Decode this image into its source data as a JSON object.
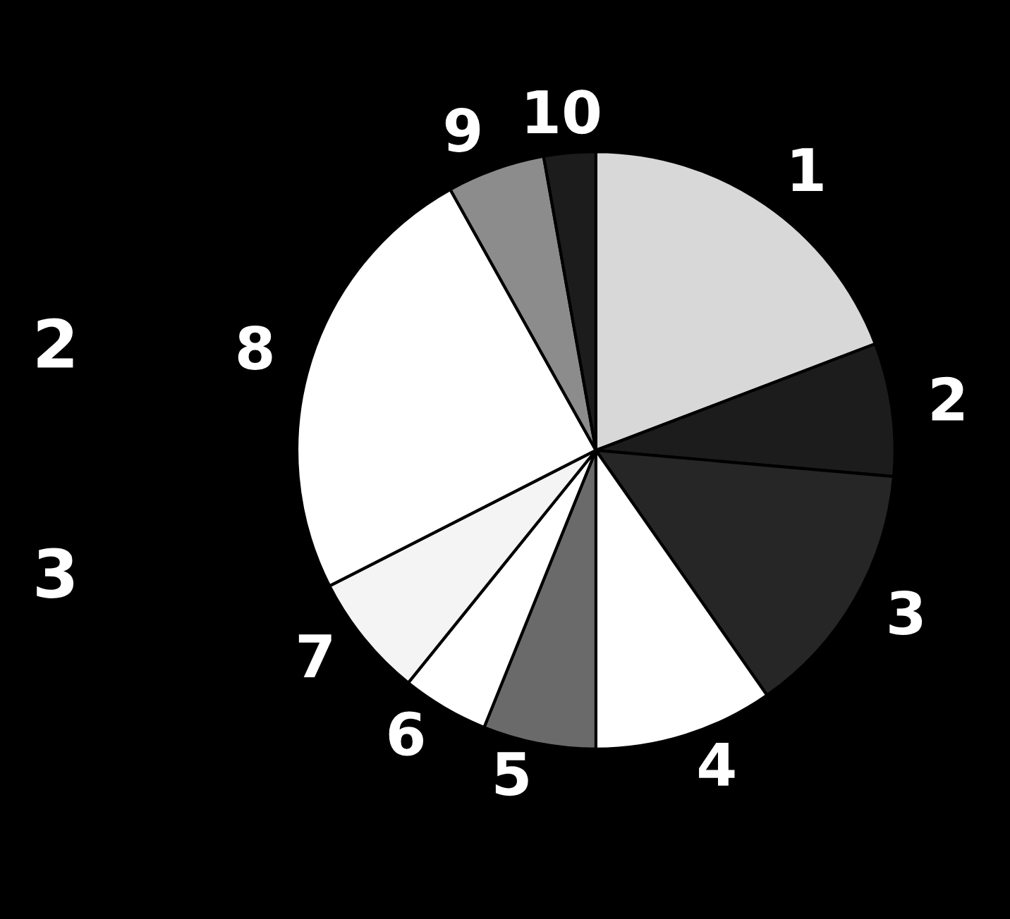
{
  "chart_data": {
    "type": "pie",
    "categories": [
      "1",
      "2",
      "3",
      "4",
      "5",
      "6",
      "7",
      "8",
      "9",
      "10"
    ],
    "values": [
      19.2,
      7.2,
      13.9,
      9.7,
      6.1,
      4.7,
      6.7,
      24.4,
      5.3,
      2.8
    ],
    "colors": [
      "#d8d8d8",
      "#1c1c1c",
      "#262626",
      "#ffffff",
      "#6a6a6a",
      "#ffffff",
      "#f4f4f4",
      "#ffffff",
      "#8c8c8c",
      "#1c1c1c"
    ],
    "annotations": [
      "2",
      "3"
    ]
  }
}
